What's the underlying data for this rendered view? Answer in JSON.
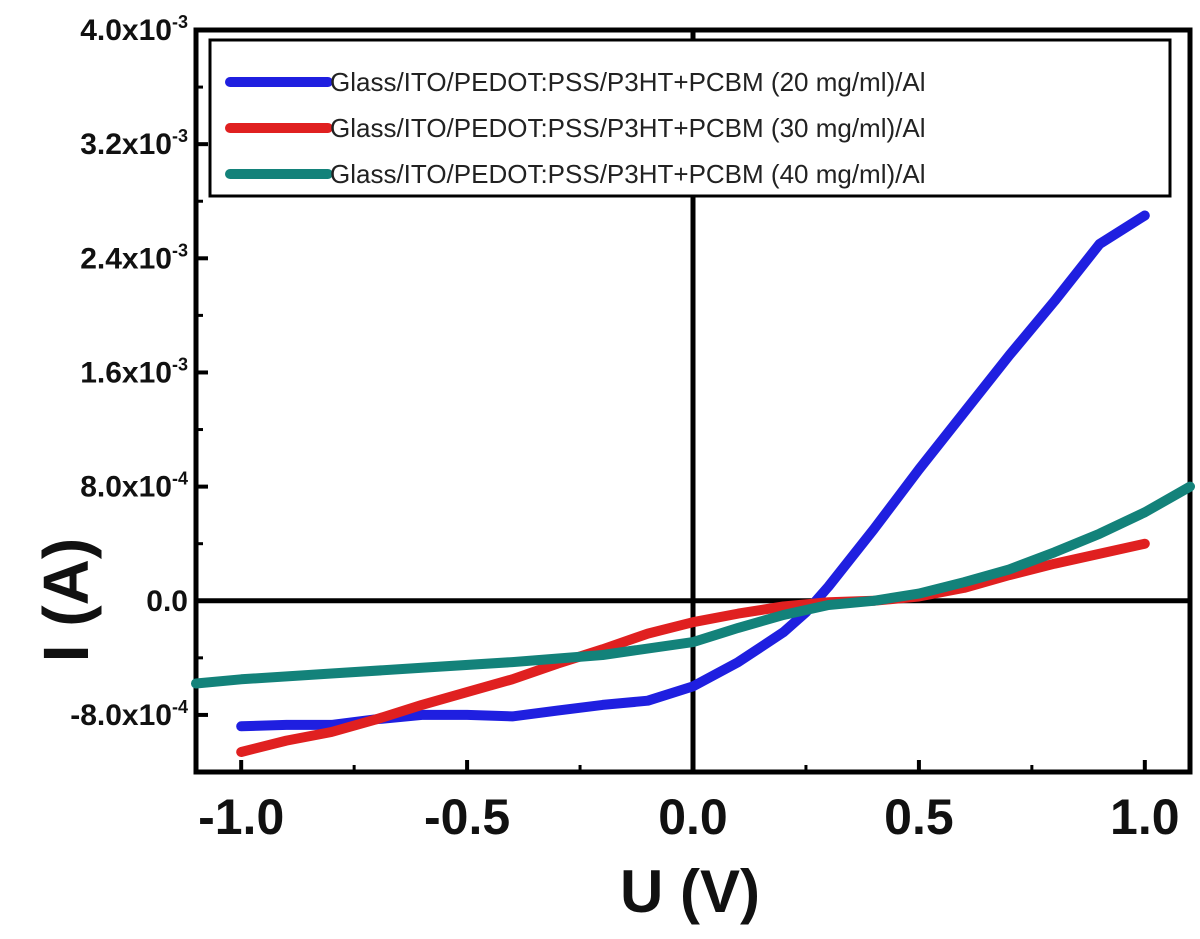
{
  "chart_data": {
    "type": "line",
    "title": "",
    "xlabel": "U (V)",
    "ylabel": "I (A)",
    "xlim": [
      -1.1,
      1.1
    ],
    "ylim": [
      -0.0012,
      0.004
    ],
    "x_ticks": [
      -1.0,
      -0.5,
      0.0,
      0.5,
      1.0
    ],
    "x_tick_labels": [
      "-1.0",
      "-0.5",
      "0.0",
      "0.5",
      "1.0"
    ],
    "y_ticks": [
      -0.0008,
      0.0,
      0.0008,
      0.0016,
      0.0024,
      0.0032,
      0.004
    ],
    "y_tick_labels": [
      {
        "mant": "-8.0x10",
        "exp": "-4"
      },
      {
        "mant": "0.0",
        "exp": ""
      },
      {
        "mant": "8.0x10",
        "exp": "-4"
      },
      {
        "mant": "1.6x10",
        "exp": "-3"
      },
      {
        "mant": "2.4x10",
        "exp": "-3"
      },
      {
        "mant": "3.2x10",
        "exp": "-3"
      },
      {
        "mant": "4.0x10",
        "exp": "-3"
      }
    ],
    "grid": false,
    "zero_lines": true,
    "legend_position": "top-right",
    "series": [
      {
        "name": "Glass/ITO/PEDOT:PSS/P3HT+PCBM (20 mg/ml)/Al",
        "color": "#1f1fe0",
        "x": [
          -1.0,
          -0.9,
          -0.8,
          -0.7,
          -0.6,
          -0.5,
          -0.4,
          -0.3,
          -0.2,
          -0.1,
          0.0,
          0.1,
          0.2,
          0.25,
          0.3,
          0.4,
          0.5,
          0.6,
          0.7,
          0.8,
          0.9,
          1.0
        ],
        "y": [
          -0.00088,
          -0.00087,
          -0.00087,
          -0.00083,
          -0.0008,
          -0.0008,
          -0.00081,
          -0.00077,
          -0.00073,
          -0.0007,
          -0.0006,
          -0.00043,
          -0.00022,
          -8e-05,
          0.0001,
          0.0005,
          0.00092,
          0.00132,
          0.00172,
          0.0021,
          0.0025,
          0.0027
        ]
      },
      {
        "name": "Glass/ITO/PEDOT:PSS/P3HT+PCBM (30 mg/ml)/Al",
        "color": "#e02020",
        "x": [
          -1.0,
          -0.9,
          -0.8,
          -0.7,
          -0.6,
          -0.5,
          -0.4,
          -0.3,
          -0.2,
          -0.1,
          0.0,
          0.1,
          0.2,
          0.3,
          0.4,
          0.5,
          0.6,
          0.7,
          0.8,
          0.9,
          1.0
        ],
        "y": [
          -0.00106,
          -0.00098,
          -0.00092,
          -0.00083,
          -0.00073,
          -0.00064,
          -0.00055,
          -0.00044,
          -0.00034,
          -0.00023,
          -0.00015,
          -9e-05,
          -4e-05,
          -1e-05,
          0.0,
          3e-05,
          9e-05,
          0.00018,
          0.00026,
          0.00033,
          0.0004
        ]
      },
      {
        "name": "Glass/ITO/PEDOT:PSS/P3HT+PCBM (40 mg/ml)/Al",
        "color": "#13827a",
        "x": [
          -1.1,
          -1.0,
          -0.8,
          -0.6,
          -0.4,
          -0.2,
          0.0,
          0.1,
          0.2,
          0.3,
          0.4,
          0.5,
          0.6,
          0.7,
          0.8,
          0.9,
          1.0,
          1.1
        ],
        "y": [
          -0.00058,
          -0.00055,
          -0.00051,
          -0.00047,
          -0.00043,
          -0.00038,
          -0.00029,
          -0.00019,
          -0.0001,
          -3e-05,
          0.0,
          5e-05,
          0.00013,
          0.00022,
          0.00034,
          0.00047,
          0.00062,
          0.0008
        ]
      }
    ]
  }
}
